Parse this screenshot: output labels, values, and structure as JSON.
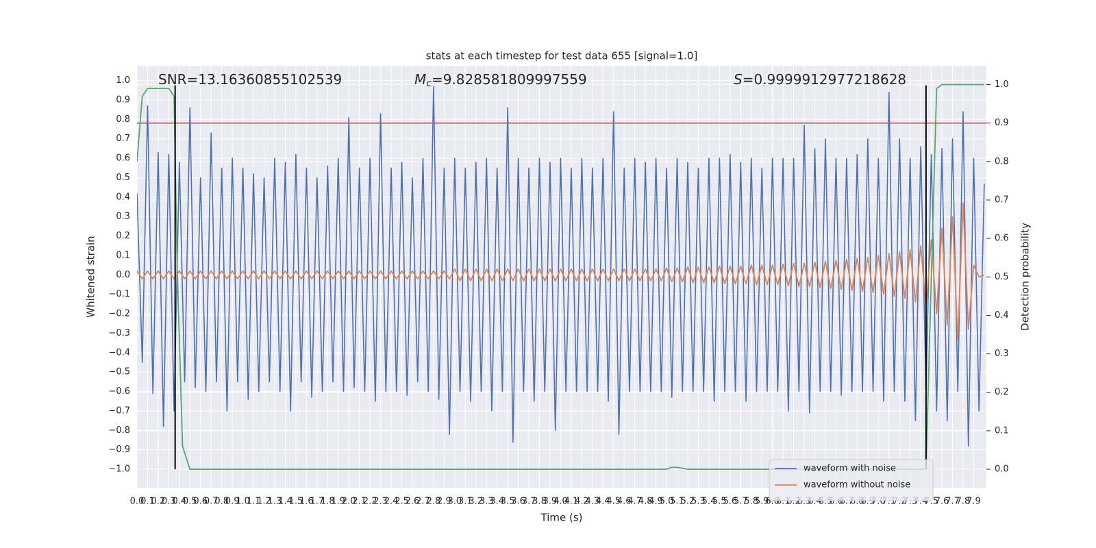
{
  "chart_data": {
    "type": "line",
    "title": "stats at each timestep for test data 655 [signal=1.0]",
    "x_label": "Time (s)",
    "y_label": "Whitened strain",
    "y2_label": "Detection probability",
    "annotations": [
      {
        "text": "SNR=13.16360855102539"
      },
      {
        "symbol": "M",
        "sub": "c",
        "text": "=9.828581809997559"
      },
      {
        "symbol": "S",
        "text": "=0.9999912977218628"
      }
    ],
    "xlim": [
      0,
      8.02
    ],
    "ylim": [
      -1.095,
      1.076
    ],
    "y2lim": [
      -0.048,
      1.049
    ],
    "grid": true,
    "legend": "lower right",
    "xticks": [
      {
        "value": 0,
        "label": "0.0"
      },
      0.1,
      0.2,
      0.3,
      0.4,
      0.5,
      0.6,
      0.7,
      0.8,
      0.9,
      {
        "value": 1,
        "label": "1.0"
      },
      1.1,
      1.2,
      1.3,
      1.4,
      1.5,
      1.6,
      1.7,
      1.8,
      1.9,
      {
        "value": 2,
        "label": "2.0"
      },
      2.1,
      2.2,
      2.3,
      2.4,
      2.5,
      2.6,
      2.7,
      2.8,
      2.9,
      {
        "value": 3,
        "label": "3.0"
      },
      3.1,
      3.2,
      3.3,
      3.4,
      3.5,
      3.6,
      3.7,
      3.8,
      3.9,
      {
        "value": 4,
        "label": "4.0"
      },
      4.1,
      4.2,
      4.3,
      4.4,
      4.5,
      4.6,
      4.7,
      4.8,
      4.9,
      {
        "value": 5,
        "label": "5.0"
      },
      5.1,
      5.2,
      5.3,
      5.4,
      5.5,
      5.6,
      5.7,
      5.8,
      5.9,
      {
        "value": 6,
        "label": "6.0"
      },
      6.1,
      6.2,
      6.3,
      6.4,
      6.5,
      6.6,
      6.7,
      6.8,
      6.9,
      {
        "value": 7,
        "label": "7.0"
      },
      7.1,
      7.2,
      7.3,
      7.4,
      7.5,
      7.6,
      7.7,
      7.8,
      7.9
    ],
    "yticks": [
      {
        "value": 1,
        "label": "1.0"
      },
      0.9,
      0.8,
      0.7,
      0.6,
      0.5,
      0.4,
      0.3,
      0.2,
      0.1,
      {
        "value": 0,
        "label": "0.0"
      },
      {
        "value": -0.1,
        "label": "−0.1"
      },
      {
        "value": -0.2,
        "label": "−0.2"
      },
      {
        "value": -0.3,
        "label": "−0.3"
      },
      {
        "value": -0.4,
        "label": "−0.4"
      },
      {
        "value": -0.5,
        "label": "−0.5"
      },
      {
        "value": -0.6,
        "label": "−0.6"
      },
      {
        "value": -0.7,
        "label": "−0.7"
      },
      {
        "value": -0.8,
        "label": "−0.8"
      },
      {
        "value": -0.9,
        "label": "−0.9"
      },
      {
        "value": -1,
        "label": "−1.0"
      }
    ],
    "y2ticks": [
      {
        "value": 1,
        "label": "1.0"
      },
      0.9,
      0.8,
      0.7,
      0.6,
      0.5,
      0.4,
      0.3,
      0.2,
      0.1,
      {
        "value": 0,
        "label": "0.0"
      }
    ],
    "x": [
      0,
      0.05,
      0.1,
      0.15,
      0.2,
      0.25,
      0.3,
      0.35,
      0.4,
      0.45,
      0.5,
      0.55,
      0.6,
      0.65,
      0.7,
      0.75,
      0.8,
      0.85,
      0.9,
      0.95,
      1,
      1.05,
      1.1,
      1.15,
      1.2,
      1.25,
      1.3,
      1.35,
      1.4,
      1.45,
      1.5,
      1.55,
      1.6,
      1.65,
      1.7,
      1.75,
      1.8,
      1.85,
      1.9,
      1.95,
      2,
      2.05,
      2.1,
      2.15,
      2.2,
      2.25,
      2.3,
      2.35,
      2.4,
      2.45,
      2.5,
      2.55,
      2.6,
      2.65,
      2.7,
      2.75,
      2.8,
      2.85,
      2.9,
      2.95,
      3,
      3.05,
      3.1,
      3.15,
      3.2,
      3.25,
      3.3,
      3.35,
      3.4,
      3.45,
      3.5,
      3.55,
      3.6,
      3.65,
      3.7,
      3.75,
      3.8,
      3.85,
      3.9,
      3.95,
      4,
      4.05,
      4.1,
      4.15,
      4.2,
      4.25,
      4.3,
      4.35,
      4.4,
      4.45,
      4.5,
      4.55,
      4.6,
      4.65,
      4.7,
      4.75,
      4.8,
      4.85,
      4.9,
      4.95,
      5,
      5.05,
      5.1,
      5.15,
      5.2,
      5.25,
      5.3,
      5.35,
      5.4,
      5.45,
      5.5,
      5.55,
      5.6,
      5.65,
      5.7,
      5.75,
      5.8,
      5.85,
      5.9,
      5.95,
      6,
      6.05,
      6.1,
      6.15,
      6.2,
      6.25,
      6.3,
      6.35,
      6.4,
      6.45,
      6.5,
      6.55,
      6.6,
      6.65,
      6.7,
      6.75,
      6.8,
      6.85,
      6.9,
      6.95,
      7,
      7.05,
      7.1,
      7.15,
      7.2,
      7.25,
      7.3,
      7.35,
      7.4,
      7.45,
      7.5,
      7.55,
      7.6,
      7.65,
      7.7,
      7.75,
      7.8,
      7.85,
      7.9,
      7.95,
      8
    ],
    "series": [
      {
        "name": "waveform with noise",
        "color": "#4c72b0",
        "values": [
          0.42,
          -0.45,
          0.87,
          -0.61,
          0.63,
          -0.78,
          0.62,
          -0.7,
          0.58,
          -0.55,
          0.86,
          -0.58,
          0.5,
          -0.6,
          0.73,
          -0.55,
          0.55,
          -0.7,
          0.6,
          -0.55,
          0.55,
          -0.64,
          0.52,
          -0.6,
          0.5,
          -0.55,
          0.6,
          -0.6,
          0.58,
          -0.7,
          0.62,
          -0.55,
          0.55,
          -0.63,
          0.5,
          -0.6,
          0.56,
          -0.55,
          0.6,
          -0.6,
          0.81,
          -0.58,
          0.55,
          -0.6,
          0.6,
          -0.65,
          0.83,
          -0.6,
          0.55,
          -0.6,
          0.58,
          -0.62,
          0.5,
          -0.55,
          0.6,
          -0.6,
          0.97,
          -0.64,
          0.55,
          -0.82,
          0.6,
          -0.6,
          0.55,
          -0.65,
          0.58,
          -0.6,
          0.6,
          -0.7,
          0.55,
          -0.6,
          0.86,
          -0.86,
          0.6,
          -0.6,
          0.55,
          -0.65,
          0.6,
          -0.6,
          0.58,
          -0.8,
          0.6,
          -0.6,
          0.55,
          -0.6,
          0.6,
          -0.6,
          0.55,
          -0.6,
          0.6,
          -0.65,
          0.84,
          -0.82,
          0.55,
          -0.6,
          0.6,
          -0.6,
          0.58,
          -0.6,
          0.6,
          -0.6,
          0.55,
          -0.63,
          0.6,
          -0.6,
          0.58,
          -0.6,
          0.55,
          -0.6,
          0.6,
          -0.65,
          0.6,
          -0.6,
          0.62,
          -0.6,
          0.58,
          -0.65,
          0.6,
          -0.6,
          0.55,
          -0.6,
          0.6,
          -0.6,
          0.6,
          -0.7,
          0.6,
          -0.6,
          0.77,
          -0.71,
          0.65,
          -0.6,
          0.7,
          -0.6,
          0.6,
          -0.62,
          0.6,
          -0.6,
          0.62,
          -0.6,
          0.7,
          -0.6,
          0.6,
          -0.65,
          0.94,
          -0.6,
          0.7,
          -0.65,
          0.6,
          -0.75,
          0.66,
          -0.6,
          0.62,
          -0.7,
          0.65,
          -0.75,
          0.7,
          -0.6,
          0.84,
          -0.88,
          0.6,
          -0.7,
          0.47
        ]
      },
      {
        "name": "waveform without noise",
        "color": "#dd8452",
        "values": [
          0.02,
          -0.02,
          0.02,
          -0.02,
          0.02,
          -0.02,
          0.02,
          -0.02,
          0.02,
          -0.02,
          0.02,
          -0.02,
          0.02,
          -0.02,
          0.02,
          -0.02,
          0.02,
          -0.02,
          0.02,
          -0.02,
          0.02,
          -0.02,
          0.02,
          -0.02,
          0.02,
          -0.02,
          0.02,
          -0.02,
          0.02,
          -0.02,
          0.02,
          -0.02,
          0.02,
          -0.02,
          0.02,
          -0.02,
          0.02,
          -0.02,
          0.02,
          -0.02,
          0.02,
          -0.02,
          0.02,
          -0.02,
          0.02,
          -0.02,
          0.02,
          -0.02,
          0.02,
          -0.02,
          0.02,
          -0.02,
          0.02,
          -0.02,
          0.02,
          -0.02,
          0.02,
          -0.02,
          0.02,
          -0.02,
          0.03,
          -0.03,
          0.03,
          -0.03,
          0.03,
          -0.03,
          0.03,
          -0.03,
          0.03,
          -0.03,
          0.03,
          -0.03,
          0.03,
          -0.03,
          0.03,
          -0.03,
          0.03,
          -0.03,
          0.03,
          -0.03,
          0.03,
          -0.03,
          0.03,
          -0.03,
          0.03,
          -0.03,
          0.03,
          -0.03,
          0.03,
          -0.03,
          0.03,
          -0.03,
          0.03,
          -0.03,
          0.03,
          -0.03,
          0.03,
          -0.03,
          0.03,
          -0.03,
          0.035,
          -0.035,
          0.035,
          -0.035,
          0.04,
          -0.04,
          0.04,
          -0.04,
          0.04,
          -0.04,
          0.045,
          -0.045,
          0.045,
          -0.045,
          0.045,
          -0.045,
          0.05,
          -0.05,
          0.05,
          -0.05,
          0.05,
          -0.05,
          0.055,
          -0.055,
          0.06,
          -0.06,
          0.06,
          -0.06,
          0.065,
          -0.065,
          0.07,
          -0.07,
          0.075,
          -0.075,
          0.08,
          -0.08,
          0.085,
          -0.085,
          0.09,
          -0.09,
          0.1,
          -0.1,
          0.11,
          -0.11,
          0.12,
          -0.12,
          0.13,
          -0.14,
          0.15,
          -0.16,
          0.18,
          -0.2,
          0.24,
          -0.26,
          0.3,
          -0.33,
          0.37,
          -0.28,
          0.05,
          -0.01,
          0
        ]
      },
      {
        "color": "#55a868",
        "axis": "y2",
        "x": [
          0,
          0.05,
          0.1,
          0.2,
          0.3,
          0.35,
          0.38,
          0.43,
          0.5,
          5,
          5.05,
          5.1,
          5.2,
          7.4,
          7.45,
          7.5,
          7.55,
          7.6,
          8
        ],
        "values": [
          0.8,
          0.97,
          0.99,
          0.99,
          0.99,
          0.97,
          0.52,
          0.06,
          0,
          0,
          0.005,
          0.005,
          0,
          0,
          0,
          0.5,
          0.99,
          1,
          1
        ]
      }
    ],
    "hline": {
      "y2": 0.9,
      "color": "#c44e52"
    },
    "vlines": [
      {
        "x": 0.36,
        "ymin": -1,
        "ymax": 0.975
      },
      {
        "x": 7.45,
        "ymin": -1,
        "ymax": 0.975
      }
    ]
  }
}
